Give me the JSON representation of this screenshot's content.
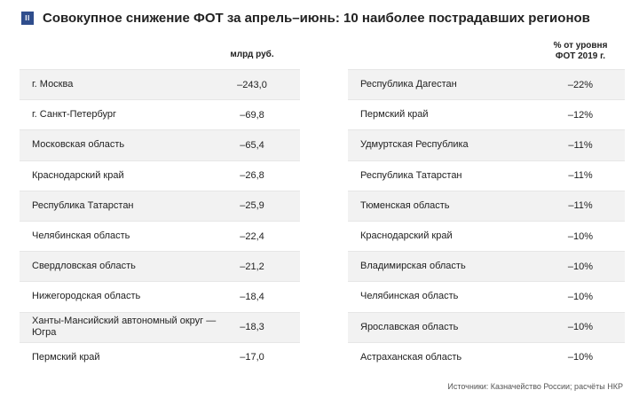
{
  "header": {
    "badge": "II",
    "title": "Совокупное снижение ФОТ за апрель–июнь: 10 наиболее пострадавших регионов"
  },
  "left_table": {
    "column_header": "млрд руб.",
    "rows": [
      {
        "region": "г. Москва",
        "value": "–243,0"
      },
      {
        "region": "г. Санкт-Петербург",
        "value": "–69,8"
      },
      {
        "region": "Московская область",
        "value": "–65,4"
      },
      {
        "region": "Краснодарский край",
        "value": "–26,8"
      },
      {
        "region": "Республика Татарстан",
        "value": "–25,9"
      },
      {
        "region": "Челябинская область",
        "value": "–22,4"
      },
      {
        "region": "Свердловская область",
        "value": "–21,2"
      },
      {
        "region": "Нижегородская область",
        "value": "–18,4"
      },
      {
        "region": "Ханты-Мансийский автономный округ — Югра",
        "value": "–18,3"
      },
      {
        "region": "Пермский край",
        "value": "–17,0"
      }
    ]
  },
  "right_table": {
    "column_header_line1": "% от уровня",
    "column_header_line2": "ФОТ 2019 г.",
    "rows": [
      {
        "region": "Республика Дагестан",
        "value": "–22%"
      },
      {
        "region": "Пермский край",
        "value": "–12%"
      },
      {
        "region": "Удмуртская Республика",
        "value": "–11%"
      },
      {
        "region": "Республика Татарстан",
        "value": "–11%"
      },
      {
        "region": "Тюменская область",
        "value": "–11%"
      },
      {
        "region": "Краснодарский край",
        "value": "–10%"
      },
      {
        "region": "Владимирская область",
        "value": "–10%"
      },
      {
        "region": "Челябинская область",
        "value": "–10%"
      },
      {
        "region": "Ярославская область",
        "value": "–10%"
      },
      {
        "region": "Астраханская область",
        "value": "–10%"
      }
    ]
  },
  "source": "Источники: Казначейство России; расчёты НКР",
  "colors": {
    "badge": "#2f4d8c",
    "row_shade": "#f2f2f2"
  }
}
